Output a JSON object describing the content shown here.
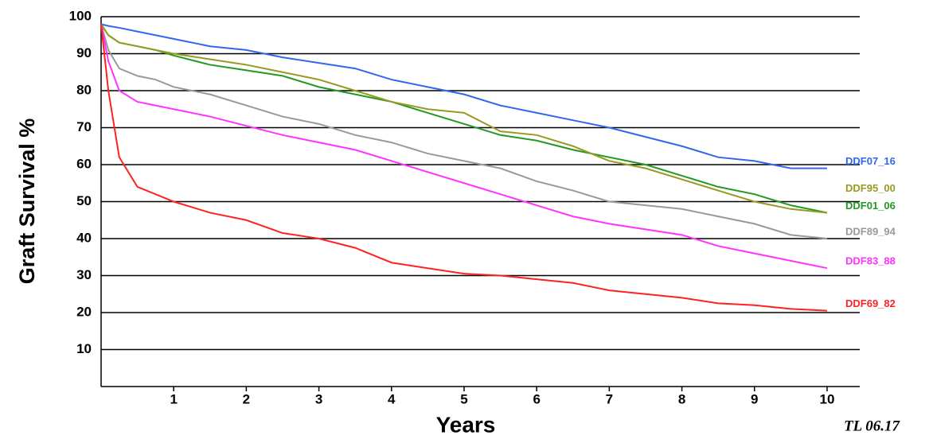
{
  "chart_data": {
    "type": "line",
    "y_label": "Graft Survival %",
    "x_label": "Years",
    "annotation": "TL 06.17",
    "xlim": [
      0,
      10.45
    ],
    "xticks": [
      1,
      2,
      3,
      4,
      5,
      6,
      7,
      8,
      9,
      10
    ],
    "ylim": [
      0,
      100
    ],
    "yticks": [
      10,
      20,
      30,
      40,
      50,
      60,
      70,
      80,
      90,
      100
    ],
    "grid": true,
    "x": [
      0,
      0.1,
      0.25,
      0.5,
      0.75,
      1,
      1.5,
      2,
      2.5,
      3,
      3.5,
      4,
      4.5,
      5,
      5.5,
      6,
      6.5,
      7,
      7.5,
      8,
      8.5,
      9,
      9.5,
      10
    ],
    "series": [
      {
        "name": "DDF07_16",
        "color": "#3366ee",
        "values": [
          98,
          97.5,
          97,
          96,
          95,
          94,
          92,
          91,
          89,
          87.5,
          86,
          83,
          81,
          79,
          76,
          74,
          72,
          70,
          67.5,
          65,
          62,
          61,
          59,
          59
        ]
      },
      {
        "name": "DDF01_06",
        "color": "#229922",
        "values": [
          98,
          95,
          93,
          92,
          91,
          89.5,
          87,
          85.5,
          84,
          81,
          79,
          77,
          74,
          71,
          68,
          66.5,
          64,
          62,
          60,
          57,
          54,
          52,
          49,
          47
        ]
      },
      {
        "name": "DDF95_00",
        "color": "#999922",
        "values": [
          98,
          95,
          93,
          92,
          91,
          90,
          88.5,
          87,
          85,
          83,
          80,
          77,
          75,
          74,
          69,
          68,
          65,
          61,
          59,
          56,
          53,
          50,
          48,
          47
        ]
      },
      {
        "name": "DDF89_94",
        "color": "#999999",
        "values": [
          98,
          91,
          86,
          84,
          83,
          81,
          79,
          76,
          73,
          71,
          68,
          66,
          63,
          61,
          59,
          55.5,
          53,
          50,
          49,
          48,
          46,
          44,
          41,
          40
        ]
      },
      {
        "name": "DDF83_88",
        "color": "#ff33ff",
        "values": [
          98,
          88,
          80,
          77,
          76,
          75,
          73,
          70.5,
          68,
          66,
          64,
          61,
          58,
          55,
          52,
          49,
          46,
          44,
          42.5,
          41,
          38,
          36,
          34,
          32
        ]
      },
      {
        "name": "DDF69_82",
        "color": "#ff2222",
        "values": [
          98,
          80,
          62,
          54,
          52,
          50,
          47,
          45,
          41.5,
          40,
          37.5,
          33.5,
          32,
          30.5,
          30,
          29,
          28,
          26,
          25,
          24,
          22.5,
          22,
          21,
          20.5
        ]
      }
    ]
  }
}
